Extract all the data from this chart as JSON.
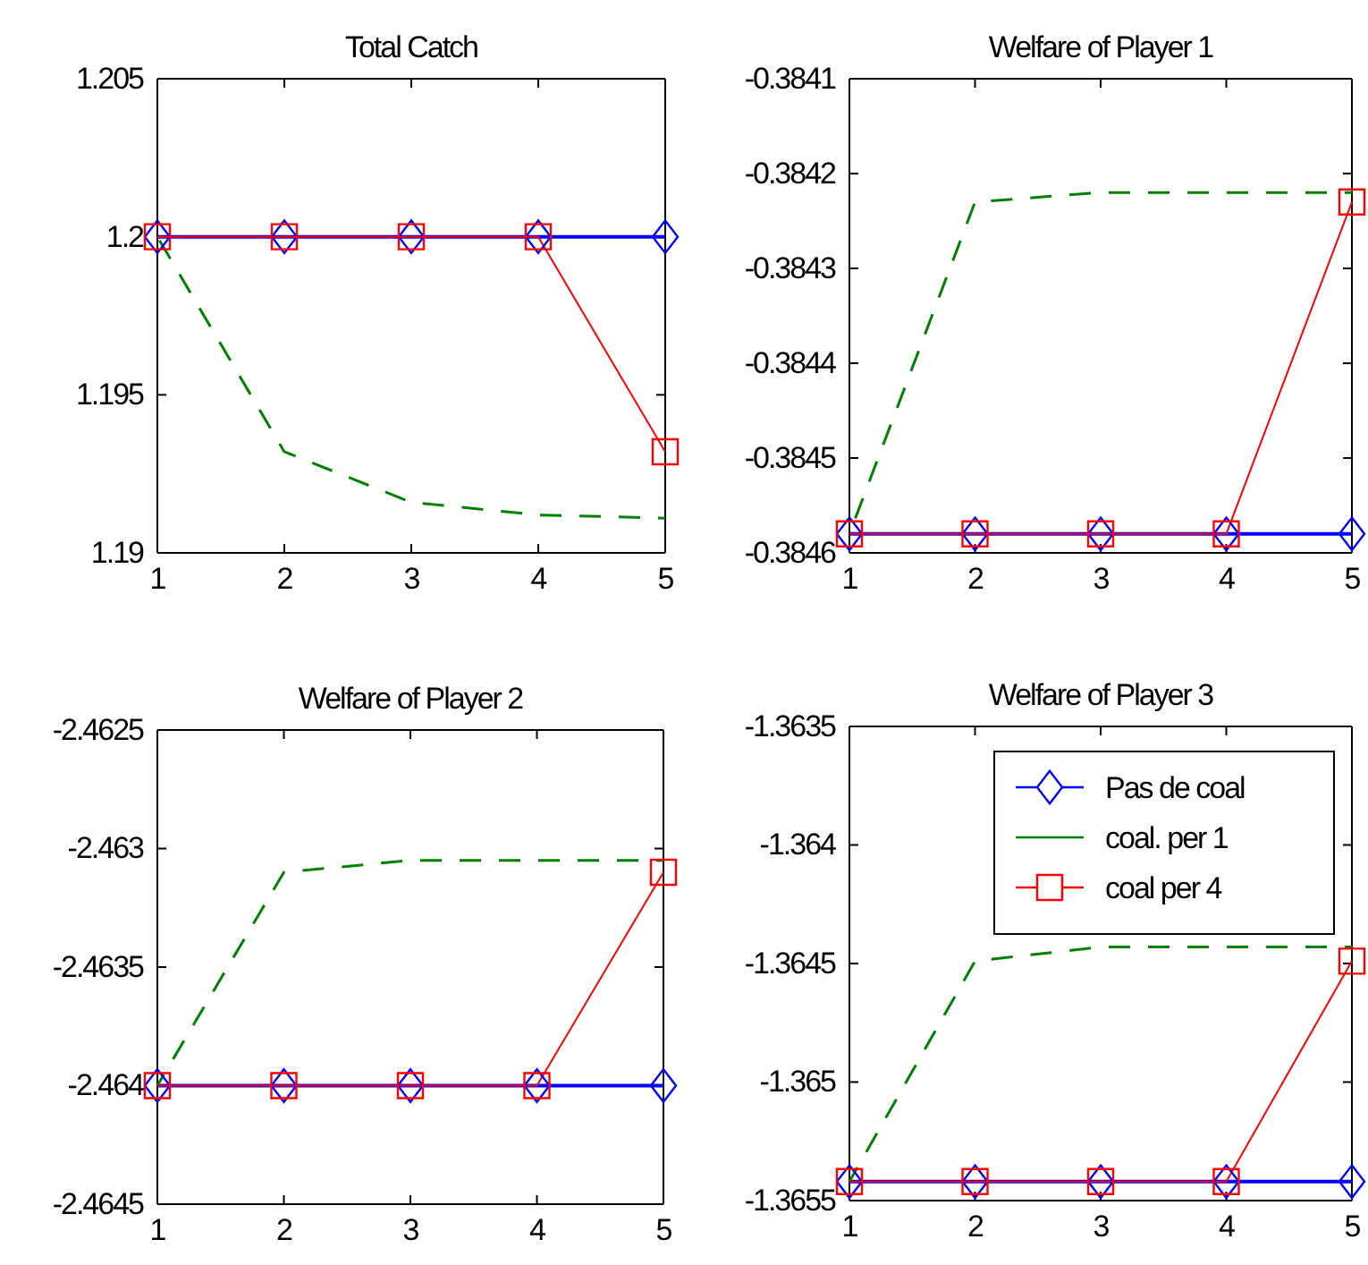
{
  "chart_data": [
    {
      "type": "line",
      "title": "Total Catch",
      "x": [
        1,
        2,
        3,
        4,
        5
      ],
      "xlim": [
        1,
        5
      ],
      "xticks": [
        1,
        2,
        3,
        4,
        5
      ],
      "ylim": [
        1.19,
        1.205
      ],
      "yticks": [
        1.19,
        1.195,
        1.2,
        1.205
      ],
      "grid": false,
      "series": [
        {
          "color": "#0000ff",
          "marker": "diamond",
          "line_style": "solid",
          "values": [
            1.2,
            1.2,
            1.2,
            1.2,
            1.2
          ]
        },
        {
          "color": "#008000",
          "marker": "none",
          "line_style": "dashed",
          "values": [
            1.2,
            1.1932,
            1.1916,
            1.1912,
            1.1911
          ]
        },
        {
          "color": "#ff0000",
          "marker": "square",
          "line_style": "solid",
          "values": [
            1.2,
            1.2,
            1.2,
            1.2,
            1.1932
          ]
        }
      ]
    },
    {
      "type": "line",
      "title": "Welfare of Player 1",
      "x": [
        1,
        2,
        3,
        4,
        5
      ],
      "xlim": [
        1,
        5
      ],
      "xticks": [
        1,
        2,
        3,
        4,
        5
      ],
      "ylim": [
        -0.3846,
        -0.3841
      ],
      "yticks": [
        -0.3846,
        -0.3845,
        -0.3844,
        -0.3843,
        -0.3842,
        -0.3841
      ],
      "grid": false,
      "series": [
        {
          "color": "#0000ff",
          "marker": "diamond",
          "line_style": "solid",
          "values": [
            -0.38458,
            -0.38458,
            -0.38458,
            -0.38458,
            -0.38458
          ]
        },
        {
          "color": "#008000",
          "marker": "none",
          "line_style": "dashed",
          "values": [
            -0.38458,
            -0.38423,
            -0.38422,
            -0.38422,
            -0.38422
          ]
        },
        {
          "color": "#ff0000",
          "marker": "square",
          "line_style": "solid",
          "values": [
            -0.38458,
            -0.38458,
            -0.38458,
            -0.38458,
            -0.38423
          ]
        }
      ]
    },
    {
      "type": "line",
      "title": "Welfare of Player 2",
      "x": [
        1,
        2,
        3,
        4,
        5
      ],
      "xlim": [
        1,
        5
      ],
      "xticks": [
        1,
        2,
        3,
        4,
        5
      ],
      "ylim": [
        -2.4645,
        -2.4625
      ],
      "yticks": [
        -2.4645,
        -2.464,
        -2.4635,
        -2.463,
        -2.4625
      ],
      "grid": false,
      "series": [
        {
          "color": "#0000ff",
          "marker": "diamond",
          "line_style": "solid",
          "values": [
            -2.464,
            -2.464,
            -2.464,
            -2.464,
            -2.464
          ]
        },
        {
          "color": "#008000",
          "marker": "none",
          "line_style": "dashed",
          "values": [
            -2.464,
            -2.4631,
            -2.46305,
            -2.46305,
            -2.46305
          ]
        },
        {
          "color": "#ff0000",
          "marker": "square",
          "line_style": "solid",
          "values": [
            -2.464,
            -2.464,
            -2.464,
            -2.464,
            -2.4631
          ]
        }
      ]
    },
    {
      "type": "line",
      "title": "Welfare of Player 3",
      "x": [
        1,
        2,
        3,
        4,
        5
      ],
      "xlim": [
        1,
        5
      ],
      "xticks": [
        1,
        2,
        3,
        4,
        5
      ],
      "ylim": [
        -1.3655,
        -1.3635
      ],
      "yticks": [
        -1.3655,
        -1.365,
        -1.3645,
        -1.364,
        -1.3635
      ],
      "grid": false,
      "legend": "top right",
      "series": [
        {
          "name": "Pas de coal",
          "color": "#0000ff",
          "marker": "diamond",
          "line_style": "solid",
          "values": [
            -1.36542,
            -1.36542,
            -1.36542,
            -1.36542,
            -1.36542
          ]
        },
        {
          "name": "coal. per 1",
          "color": "#008000",
          "marker": "none",
          "line_style": "dashed",
          "values": [
            -1.36542,
            -1.36449,
            -1.36443,
            -1.36443,
            -1.36443
          ]
        },
        {
          "name": "coal per 4",
          "color": "#ff0000",
          "marker": "square",
          "line_style": "solid",
          "values": [
            -1.36542,
            -1.36542,
            -1.36542,
            -1.36542,
            -1.36449
          ]
        }
      ]
    }
  ]
}
